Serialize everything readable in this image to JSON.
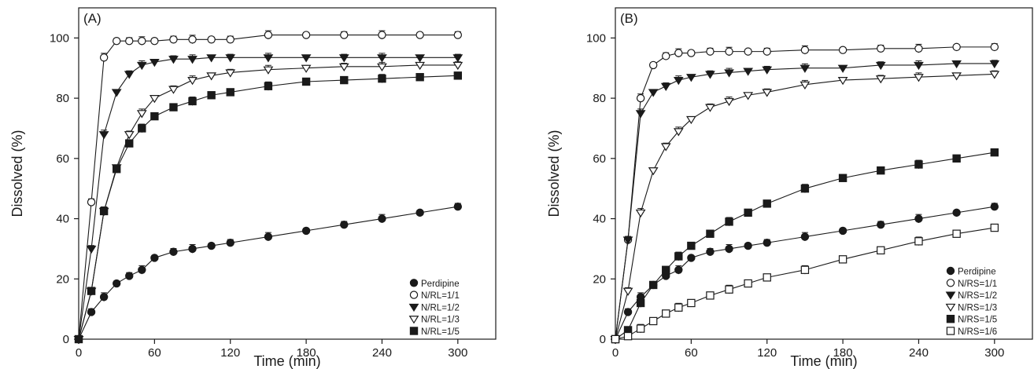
{
  "chart_data": [
    {
      "type": "line",
      "panel_label": "(A)",
      "xlabel": "Time (min)",
      "ylabel": "Dissolved (%)",
      "xlim": [
        0,
        330
      ],
      "ylim": [
        0,
        110
      ],
      "xticks": [
        0,
        60,
        120,
        180,
        240,
        300
      ],
      "yticks": [
        0,
        20,
        40,
        60,
        80,
        100
      ],
      "grid": false,
      "legend_position": "bottom-right",
      "x": [
        0,
        10,
        20,
        30,
        40,
        50,
        60,
        75,
        90,
        105,
        120,
        150,
        180,
        210,
        240,
        270,
        300
      ],
      "series": [
        {
          "name": "Perdipine",
          "marker": "filled-circle",
          "values": [
            0,
            9,
            14,
            18.5,
            21,
            23,
            27,
            29,
            30,
            31,
            32,
            34,
            36,
            38,
            40,
            42,
            44
          ]
        },
        {
          "name": "N/RL=1/1",
          "marker": "open-circle",
          "values": [
            0,
            45.5,
            93.5,
            99,
            99,
            99,
            99,
            99.5,
            99.5,
            99.5,
            99.5,
            101,
            101,
            101,
            101,
            101,
            101
          ]
        },
        {
          "name": "N/RL=1/2",
          "marker": "filled-triangle-down",
          "values": [
            0,
            30,
            68,
            82,
            88,
            91,
            92,
            93,
            93,
            93.5,
            93.5,
            93.5,
            93.5,
            93.5,
            93.5,
            93.5,
            93.5
          ]
        },
        {
          "name": "N/RL=1/3",
          "marker": "open-triangle-down",
          "values": [
            0,
            16,
            42.5,
            57,
            68,
            75,
            80,
            83,
            86,
            87.5,
            88.5,
            89.5,
            90,
            90.5,
            90.5,
            91,
            91
          ]
        },
        {
          "name": "N/RL=1/5",
          "marker": "filled-square",
          "values": [
            0,
            16,
            42.5,
            56.5,
            65,
            70,
            74,
            77,
            79,
            81,
            82,
            84,
            85.5,
            86,
            86.5,
            87,
            87.5
          ]
        }
      ]
    },
    {
      "type": "line",
      "panel_label": "(B)",
      "xlabel": "Time (min)",
      "ylabel": "Dissolved (%)",
      "xlim": [
        0,
        330
      ],
      "ylim": [
        0,
        110
      ],
      "xticks": [
        0,
        60,
        120,
        180,
        240,
        300
      ],
      "yticks": [
        0,
        20,
        40,
        60,
        80,
        100
      ],
      "grid": false,
      "legend_position": "bottom-right",
      "x": [
        0,
        10,
        20,
        30,
        40,
        50,
        60,
        75,
        90,
        105,
        120,
        150,
        180,
        210,
        240,
        270,
        300
      ],
      "series": [
        {
          "name": "Perdipine",
          "marker": "filled-circle",
          "values": [
            0,
            9,
            14,
            18,
            21,
            23,
            27,
            29,
            30,
            31,
            32,
            34,
            36,
            38,
            40,
            42,
            44
          ]
        },
        {
          "name": "N/RS=1/1",
          "marker": "open-circle",
          "values": [
            0,
            33,
            80,
            91,
            94,
            95,
            95,
            95.5,
            95.5,
            95.5,
            95.5,
            96,
            96,
            96.5,
            96.5,
            97,
            97
          ]
        },
        {
          "name": "N/RS=1/2",
          "marker": "filled-triangle-down",
          "values": [
            0,
            33,
            75,
            82,
            84,
            86,
            87,
            88,
            88.5,
            89,
            89.5,
            90,
            90,
            91,
            91,
            91.5,
            91.5
          ]
        },
        {
          "name": "N/RS=1/3",
          "marker": "open-triangle-down",
          "values": [
            0,
            16,
            42,
            56,
            64,
            69,
            73,
            77,
            79,
            81,
            82,
            84.5,
            86,
            86.5,
            87,
            87.5,
            88
          ]
        },
        {
          "name": "N/RS=1/5",
          "marker": "filled-square",
          "values": [
            0,
            3,
            12,
            18,
            23,
            27.5,
            31,
            35,
            39,
            42,
            45,
            50,
            53.5,
            56,
            58,
            60,
            62
          ]
        },
        {
          "name": "N/RS=1/6",
          "marker": "open-square",
          "values": [
            0,
            1,
            3.5,
            6,
            8.5,
            10.5,
            12,
            14.5,
            16.5,
            18.5,
            20.5,
            23,
            26.5,
            29.5,
            32.5,
            35,
            37
          ]
        }
      ]
    }
  ]
}
